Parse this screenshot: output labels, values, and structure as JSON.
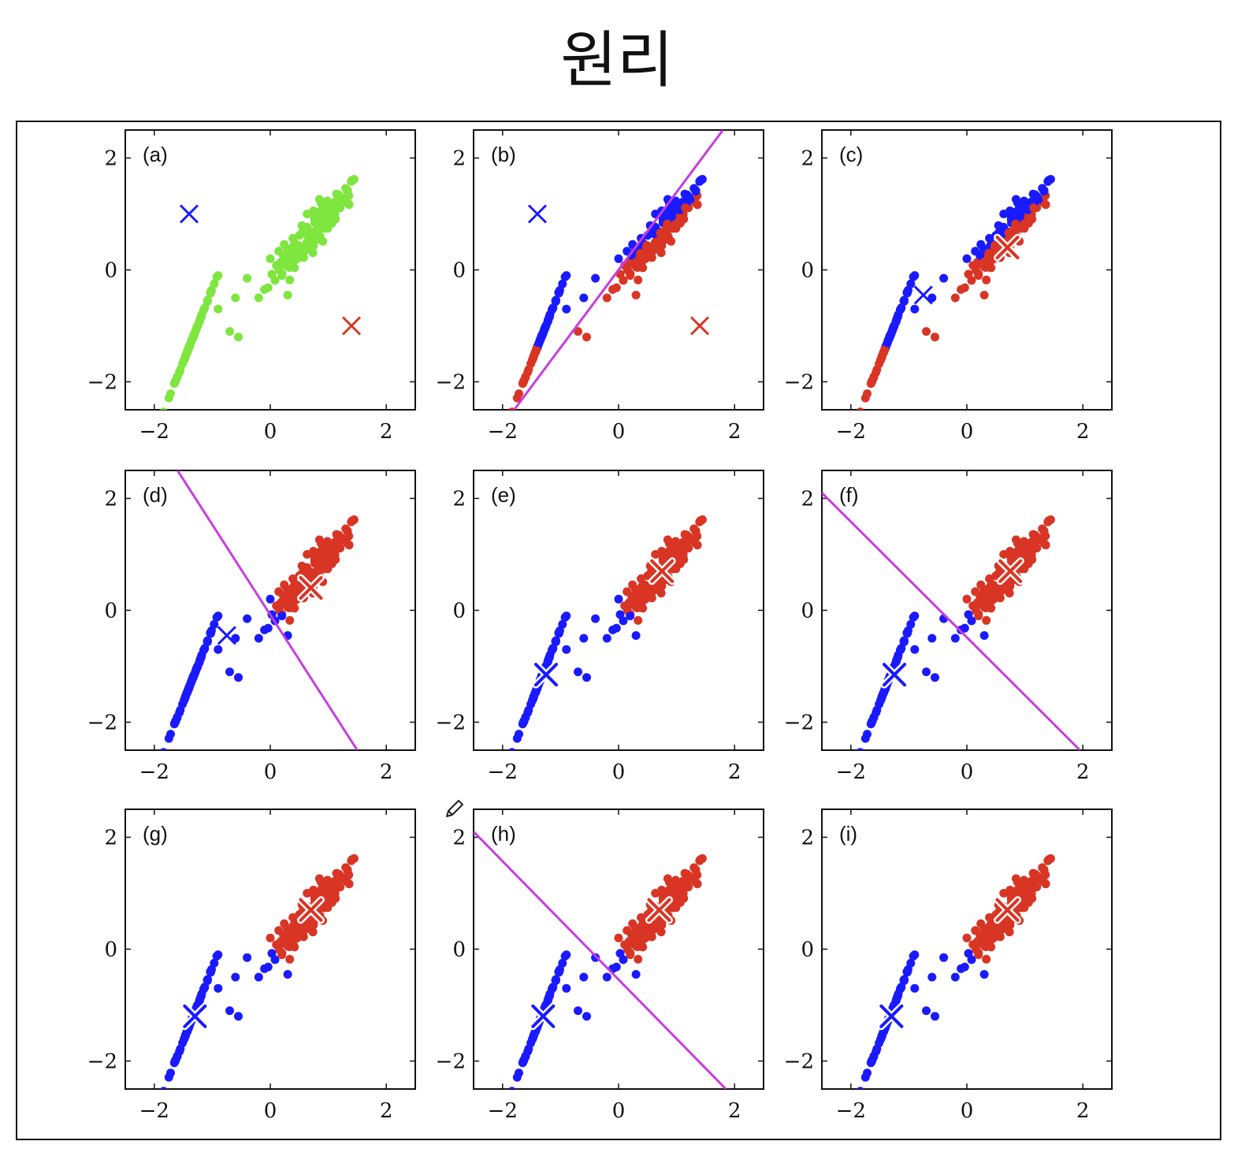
{
  "title": "원리",
  "colors": {
    "green": "#7ee63f",
    "blue": "#1a1aff",
    "red": "#d93525",
    "boundary": "#c83de0",
    "axis": "#111111"
  },
  "chart_data": {
    "type": "scatter",
    "xlim": [
      -2.5,
      2.5
    ],
    "ylim": [
      -2.5,
      2.5
    ],
    "xticks": [
      -2,
      0,
      2
    ],
    "yticks": [
      -2,
      0,
      2
    ],
    "xtick_labels": [
      "−2",
      "0",
      "2"
    ],
    "ytick_labels": [
      "2",
      "0",
      "−2"
    ],
    "grid": false,
    "cluster_centers_data": {
      "upper_right": [
        0.75,
        0.7
      ],
      "lower_left": [
        -1.35,
        -1.25
      ]
    },
    "panels": [
      {
        "label": "(a)",
        "mode": "green",
        "centroids": [
          {
            "x": -1.4,
            "y": 1.0,
            "color": "blue",
            "style": "plain"
          },
          {
            "x": 1.4,
            "y": -1.0,
            "color": "red",
            "style": "plain"
          }
        ],
        "boundary": null
      },
      {
        "label": "(b)",
        "mode": "line",
        "assign": [
          1,
          -1,
          0
        ],
        "centroids": [
          {
            "x": -1.4,
            "y": 1.0,
            "color": "blue",
            "style": "plain"
          },
          {
            "x": 1.4,
            "y": -1.0,
            "color": "red",
            "style": "plain"
          }
        ],
        "boundary": [
          [
            -1.8,
            -2.5
          ],
          [
            1.8,
            2.5
          ]
        ]
      },
      {
        "label": "(c)",
        "mode": "line",
        "assign": [
          1,
          -1,
          0
        ],
        "centroids": [
          {
            "x": -0.75,
            "y": -0.45,
            "color": "blue",
            "style": "plain"
          },
          {
            "x": 0.7,
            "y": 0.4,
            "color": "red",
            "style": "outlined"
          }
        ],
        "boundary": null
      },
      {
        "label": "(d)",
        "mode": "line",
        "assign": [
          1,
          0.6,
          -0.15
        ],
        "centroids": [
          {
            "x": -0.75,
            "y": -0.45,
            "color": "blue",
            "style": "plain"
          },
          {
            "x": 0.7,
            "y": 0.4,
            "color": "red",
            "style": "outlined"
          }
        ],
        "boundary": [
          [
            -1.6,
            2.5
          ],
          [
            1.5,
            -2.5
          ]
        ]
      },
      {
        "label": "(e)",
        "mode": "line",
        "assign": [
          1,
          0.6,
          -0.15
        ],
        "centroids": [
          {
            "x": -1.25,
            "y": -1.15,
            "color": "blue",
            "style": "outlined"
          },
          {
            "x": 0.75,
            "y": 0.7,
            "color": "red",
            "style": "outlined"
          }
        ],
        "boundary": null
      },
      {
        "label": "(f)",
        "mode": "line",
        "assign": [
          1,
          1,
          -0.05
        ],
        "centroids": [
          {
            "x": -1.25,
            "y": -1.15,
            "color": "blue",
            "style": "outlined"
          },
          {
            "x": 0.75,
            "y": 0.7,
            "color": "red",
            "style": "outlined"
          }
        ],
        "boundary": [
          [
            -2.5,
            2.1
          ],
          [
            1.95,
            -2.5
          ]
        ]
      },
      {
        "label": "(g)",
        "mode": "line",
        "assign": [
          1,
          1,
          -0.05
        ],
        "centroids": [
          {
            "x": -1.3,
            "y": -1.2,
            "color": "blue",
            "style": "outlined"
          },
          {
            "x": 0.7,
            "y": 0.7,
            "color": "red",
            "style": "outlined"
          }
        ],
        "boundary": null
      },
      {
        "label": "(h)",
        "mode": "line",
        "assign": [
          1,
          1,
          -0.05
        ],
        "centroids": [
          {
            "x": -1.3,
            "y": -1.2,
            "color": "blue",
            "style": "outlined"
          },
          {
            "x": 0.7,
            "y": 0.7,
            "color": "red",
            "style": "outlined"
          }
        ],
        "boundary": [
          [
            -2.5,
            2.1
          ],
          [
            1.85,
            -2.5
          ]
        ]
      },
      {
        "label": "(i)",
        "mode": "line",
        "assign": [
          1,
          1,
          -0.05
        ],
        "centroids": [
          {
            "x": -1.3,
            "y": -1.2,
            "color": "blue",
            "style": "outlined"
          },
          {
            "x": 0.7,
            "y": 0.7,
            "color": "red",
            "style": "outlined"
          }
        ],
        "boundary": null
      }
    ]
  }
}
